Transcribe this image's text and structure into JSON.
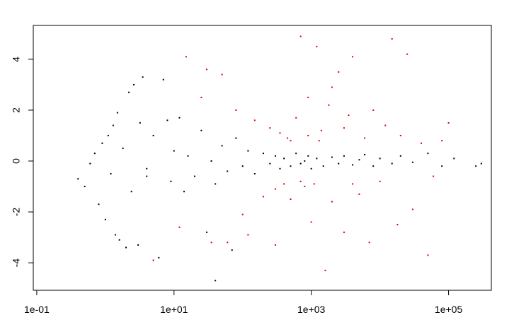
{
  "chart_data": {
    "type": "scatter",
    "log_x": true,
    "xlim": [
      0.089,
      420000
    ],
    "ylim": [
      -5.08,
      5.33
    ],
    "xticks": [
      {
        "value": 0.1,
        "label": "1e-01"
      },
      {
        "value": 10,
        "label": "1e+01"
      },
      {
        "value": 1000,
        "label": "1e+03"
      },
      {
        "value": 100000,
        "label": "1e+05"
      }
    ],
    "yticks": [
      -4,
      -2,
      0,
      2,
      4
    ],
    "series": [
      {
        "color": "#000000",
        "x": [
          0.4,
          0.5,
          0.6,
          0.7,
          0.8,
          0.9,
          1.0,
          1.1,
          1.2,
          1.3,
          1.4,
          1.5,
          1.6,
          1.8,
          2.0,
          2.2,
          2.4,
          2.6,
          3.0,
          3.2,
          3.5,
          4,
          5,
          6,
          7,
          8,
          9,
          10,
          12,
          14,
          16,
          20,
          25,
          30,
          35,
          40,
          50,
          60,
          70,
          80,
          100,
          120,
          150,
          200,
          250,
          300,
          350,
          400,
          500,
          600,
          700,
          800,
          900,
          1000,
          1200,
          1500,
          2000,
          2500,
          3000,
          4000,
          5000,
          6000,
          8000,
          10000,
          15000,
          20000,
          30000,
          50000,
          80000,
          120000,
          250000,
          300000,
          40,
          4
        ],
        "values": [
          -0.7,
          -1.0,
          -0.1,
          0.3,
          -1.7,
          0.7,
          -2.3,
          1.0,
          -0.5,
          1.4,
          -2.9,
          1.9,
          -3.1,
          0.5,
          -3.4,
          2.7,
          -1.2,
          3.0,
          -3.3,
          1.5,
          3.3,
          -0.3,
          1.0,
          -3.8,
          3.2,
          1.6,
          -0.8,
          0.4,
          1.7,
          -1.2,
          0.2,
          -0.6,
          1.2,
          -2.8,
          0.0,
          -0.9,
          0.6,
          -0.4,
          -3.5,
          0.9,
          -0.2,
          0.4,
          -0.5,
          0.3,
          -0.1,
          0.2,
          -0.3,
          0.1,
          -0.2,
          0.3,
          -0.1,
          0.0,
          0.2,
          -0.3,
          0.1,
          -0.2,
          0.15,
          -0.1,
          0.2,
          -0.15,
          0.05,
          0.25,
          -0.2,
          0.1,
          -0.1,
          0.2,
          -0.05,
          0.3,
          -0.2,
          0.1,
          -0.2,
          -0.1,
          -4.7,
          -0.6
        ]
      },
      {
        "color": "#dd0000",
        "x": [
          15,
          30,
          25,
          50,
          60,
          80,
          100,
          150,
          200,
          250,
          300,
          350,
          400,
          450,
          500,
          600,
          700,
          800,
          900,
          1000,
          1200,
          1400,
          1600,
          1800,
          2000,
          2500,
          3000,
          3500,
          4000,
          5000,
          6000,
          7000,
          8000,
          10000,
          12000,
          15000,
          18000,
          20000,
          25000,
          30000,
          40000,
          50000,
          60000,
          80000,
          100000,
          5,
          12,
          35,
          120,
          300,
          500,
          700,
          900,
          1100,
          1300,
          2000,
          3000,
          4000
        ],
        "values": [
          4.1,
          3.6,
          2.5,
          3.4,
          -3.2,
          2.0,
          -2.1,
          1.6,
          -1.4,
          1.3,
          -1.1,
          1.1,
          -0.9,
          0.9,
          -1.5,
          1.7,
          4.9,
          -1.0,
          2.5,
          -2.4,
          4.5,
          1.2,
          -4.3,
          2.2,
          -1.6,
          3.5,
          -2.8,
          1.8,
          4.1,
          -1.3,
          0.9,
          -3.2,
          2.0,
          -0.8,
          1.4,
          4.8,
          -2.5,
          1.0,
          4.2,
          -1.9,
          0.7,
          -3.7,
          -0.6,
          0.8,
          1.5,
          -3.9,
          -2.6,
          -3.2,
          -2.9,
          -3.3,
          0.8,
          -0.8,
          1.0,
          -0.9,
          0.8,
          2.9,
          1.3,
          -0.9
        ]
      }
    ]
  }
}
